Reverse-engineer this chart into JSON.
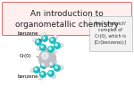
{
  "title_line1": "An introduction to",
  "title_line2": "organometallic chemistry",
  "title_box_facecolor": "#fff0f0",
  "title_box_edgecolor": "#e07070",
  "bg_color": "#ffffff",
  "label_benzene_top": "benzene",
  "label_benzene_bottom": "benzene",
  "label_cr": "Cr(0)",
  "sidebar_lines": [
    "The 'sandwich'",
    "complex of",
    "Cr(0), which is",
    "[Cr(benzene)₂]"
  ],
  "teal_color": "#1abebe",
  "white_atom_color": "#d8d8d8",
  "cr_color": "#c0c0c8",
  "font_size_title": 6.5,
  "font_size_label": 4.0,
  "font_size_sidebar": 3.5
}
